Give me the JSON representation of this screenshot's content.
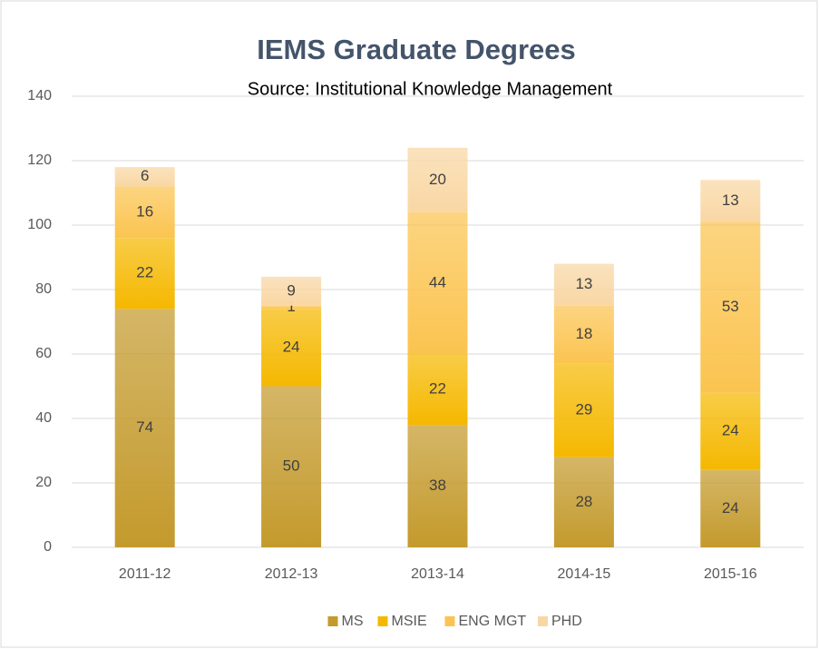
{
  "chart_data": {
    "type": "bar",
    "stacked": true,
    "title": "IEMS Graduate Degrees",
    "subtitle": "Source: Institutional Knowledge Management",
    "categories": [
      "2011-12",
      "2012-13",
      "2013-14",
      "2014-15",
      "2015-16"
    ],
    "series": [
      {
        "name": "MS",
        "color": "#c49a2c",
        "values": [
          74,
          50,
          38,
          28,
          24
        ]
      },
      {
        "name": "MSIE",
        "color": "#f5b800",
        "values": [
          22,
          24,
          22,
          29,
          24
        ]
      },
      {
        "name": "ENG MGT",
        "color": "#fbc450",
        "values": [
          16,
          1,
          44,
          18,
          53
        ]
      },
      {
        "name": "PHD",
        "color": "#f9d7a4",
        "values": [
          6,
          9,
          20,
          13,
          13
        ]
      }
    ],
    "ylim": [
      0,
      140
    ],
    "yticks": [
      0,
      20,
      40,
      60,
      80,
      100,
      120,
      140
    ],
    "grid": true,
    "legend": "bottom"
  }
}
